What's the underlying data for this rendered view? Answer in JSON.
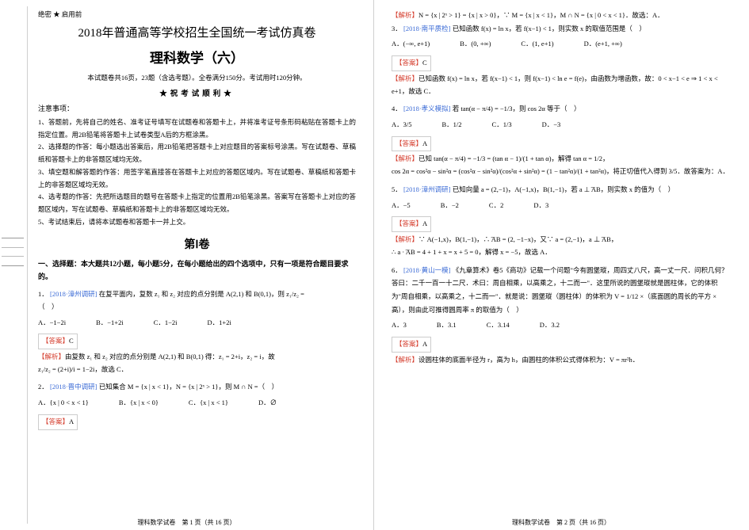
{
  "secret": "绝密 ★ 启用前",
  "titleMain": "2018年普通高等学校招生全国统一考试仿真卷",
  "titleSub": "理科数学（六）",
  "descLine": "本试题卷共16页，23题（含选考题）。全卷满分150分。考试用时120分钟。",
  "goodLuck": "★祝考试顺利★",
  "noticeHeader": "注意事项：",
  "notices": [
    "1、答题前，先将自己的姓名、准考证号填写在试题卷和答题卡上，并将准考证号条形码粘贴在答题卡上的指定位置。用2B铅笔将答题卡上试卷类型A后的方框涂黑。",
    "2、选择题的作答：每小题选出答案后，用2B铅笔把答题卡上对应题目的答案标号涂黑。写在试题卷、草稿纸和答题卡上的非答题区域均无效。",
    "3、填空题和解答题的作答：用签字笔直接答在答题卡上对应的答题区域内。写在试题卷、草稿纸和答题卡上的非答题区域均无效。",
    "4、选考题的作答：先把所选题目的题号在答题卡上指定的位置用2B铅笔涂黑。答案写在答题卡上对应的答题区域内，写在试题卷、草稿纸和答题卡上的非答题区域均无效。",
    "5、考试结束后，请将本试题卷和答题卡一并上交。"
  ],
  "section1": "第Ⅰ卷",
  "choiceHeader": "一、选择题：本大题共12小题，每小题5分，在每小题给出的四个选项中，只有一项是符合题目要求的。",
  "q1": {
    "num": "1．",
    "src": "[2018·漳州调研]",
    "body": "在复平面内，复数 z₁ 和 z₂ 对应的点分别是 A(2,1) 和 B(0,1)，则 z₁/z₂ =",
    "tail": "（　）",
    "opts": {
      "A": "A．−1−2i",
      "B": "B．−1+2i",
      "C": "C．1−2i",
      "D": "D．1+2i"
    },
    "ansLabel": "【答案】",
    "ans": "C",
    "expLabel": "【解析】",
    "exp1": "由复数 z₁ 和 z₂ 对应的点分别是 A(2,1) 和 B(0,1) 得：z₁ = 2+i，z₂ = i，故",
    "exp2": "z₁/z₂ = (2+i)/i = 1−2i，故选 C．"
  },
  "q2": {
    "num": "2．",
    "src": "[2018·晋中调研]",
    "body": "已知集合 M = {x | x < 1}，N = {x | 2ˣ > 1}，则 M ∩ N =（　）",
    "opts": {
      "A": "A．{x | 0 < x < 1}",
      "B": "B．{x | x < 0}",
      "C": "C．{x | x < 1}",
      "D": "D．∅"
    },
    "ansLabel": "【答案】",
    "ans": "A"
  },
  "r1": {
    "expLabel": "【解析】",
    "body": "N = {x | 2ˣ > 1} = {x | x > 0}，∵ M = {x | x < 1}，M ∩ N = {x | 0 < x < 1}．故选：A．"
  },
  "q3": {
    "num": "3．",
    "src": "[2018·南平质检]",
    "body": "已知函数 f(x) = ln x，若 f(x−1) < 1，则实数 x 的取值范围是（　）",
    "opts": {
      "A": "A．(−∞, e+1)",
      "B": "B．(0, +∞)",
      "C": "C．(1, e+1)",
      "D": "D．(e+1, +∞)"
    },
    "ansLabel": "【答案】",
    "ans": "C",
    "expLabel": "【解析】",
    "exp": "已知函数 f(x) = ln x，若 f(x−1) < 1，则 f(x−1) < ln e = f(e)，由函数为增函数，故：0 < x−1 < e ⇒ 1 < x < e+1，故选 C．"
  },
  "q4": {
    "num": "4．",
    "src": "[2018·孝义模拟]",
    "body": "若 tan(α − π/4) = −1/3，则 cos 2α 等于（　）",
    "opts": {
      "A": "A．3/5",
      "B": "B．1/2",
      "C": "C．1/3",
      "D": "D．−3"
    },
    "ansLabel": "【答案】",
    "ans": "A",
    "expLabel": "【解析】",
    "exp1": "已知 tan(α − π/4) = −1/3 = (tan α − 1)/(1 + tan α)，解得 tan α = 1/2，",
    "exp2": "cos 2α = cos²α − sin²α = (cos²α − sin²α)/(cos²α + sin²α) = (1 − tan²α)/(1 + tan²α)，将正切值代入得到 3/5．故答案为：A．"
  },
  "q5": {
    "num": "5．",
    "src": "[2018·漳州调研]",
    "body": "已知向量 a = (2,−1)，A(−1,x)，B(1,−1)，若 a ⊥ ͞AB，则实数 x 的值为（　）",
    "opts": {
      "A": "A．−5",
      "B": "B．−2",
      "C": "C．2",
      "D": "D．3"
    },
    "ansLabel": "【答案】",
    "ans": "A",
    "expLabel": "【解析】",
    "exp1": "∵ A(−1,x)，B(1,−1)，∴ ͞AB = (2, −1−x)，又∵ a = (2,−1)，a ⊥ ͞AB，",
    "exp2": "∴ a · ͞AB = 4 + 1 + x = x + 5 = 0，解得 x = −5，故选 A．"
  },
  "q6": {
    "num": "6．",
    "src": "[2018·黄山一模]",
    "body": "《九章算术》卷5《商功》记载一个问题\"今有圆堡瑽，周四丈八尺，高一丈一尺．问积几何？答曰：二千一百一十二尺．术曰：周自相乘，以高乘之，十二而一\"．这里所说的圆堡瑽就是圆柱体，它的体积为\"周自相乘，以高乘之，十二而一\"．就是说：圆堡瑽（圆柱体）的体积为 V = 1/12 ×（底面圆的周长的平方 × 高），则由此可推得圆周率 π 的取值为（　）",
    "opts": {
      "A": "A．3",
      "B": "B．3.1",
      "C": "C．3.14",
      "D": "D．3.2"
    },
    "ansLabel": "【答案】",
    "ans": "A",
    "expLabel": "【解析】",
    "exp": "设圆柱体的底面半径为 r，高为 h，由圆柱的体积公式得体积为：V = πr²h．"
  },
  "footerLeft": "理科数学试卷　第 1 页（共 16 页）",
  "footerRight": "理科数学试卷　第 2 页（共 16 页）",
  "colors": {
    "src": "#3b6bd6",
    "red": "#d43a2a",
    "text": "#000000",
    "border": "#cfcfcf"
  }
}
